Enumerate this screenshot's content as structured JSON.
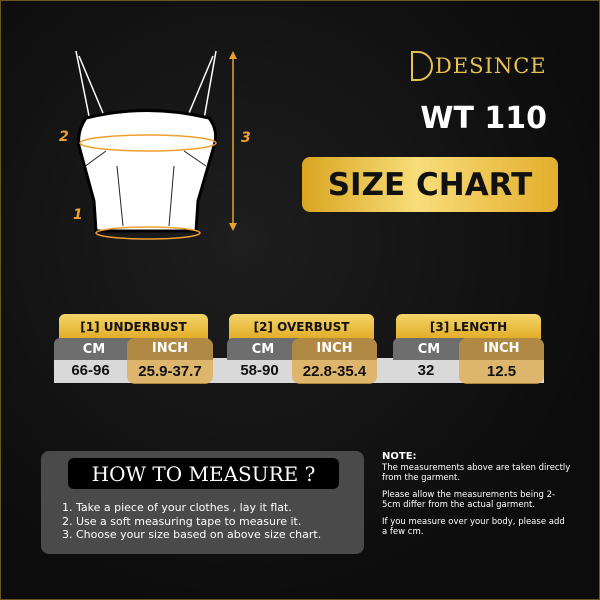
{
  "brand": {
    "logo_text": "DESINCE",
    "color": "#e8c251"
  },
  "model": "WT 110",
  "title": "SIZE CHART",
  "diagram": {
    "labels": [
      "1",
      "2",
      "3"
    ],
    "accent": "#f0a030"
  },
  "table": {
    "groups": [
      {
        "label": "[1] UNDERBUST",
        "cm_label": "CM",
        "inch_label": "INCH",
        "cm": "66-96",
        "inch": "25.9-37.7"
      },
      {
        "label": "[2] OVERBUST",
        "cm_label": "CM",
        "inch_label": "INCH",
        "cm": "58-90",
        "inch": "22.8-35.4"
      },
      {
        "label": "[3] LENGTH",
        "cm_label": "CM",
        "inch_label": "INCH",
        "cm": "32",
        "inch": "12.5"
      }
    ]
  },
  "how_to": {
    "title": "HOW TO MEASURE ?",
    "steps": [
      "1. Take a piece of your clothes , lay it flat.",
      "2. Use a soft measuring tape to measure it.",
      "3. Choose your size based on above size chart."
    ]
  },
  "note": {
    "title": "NOTE:",
    "paragraphs": [
      "The measurements above are taken directly from the garment.",
      "Please allow the measurements being 2-5cm differ from the actual garment.",
      "If you measure over your body, please add a few cm."
    ]
  }
}
